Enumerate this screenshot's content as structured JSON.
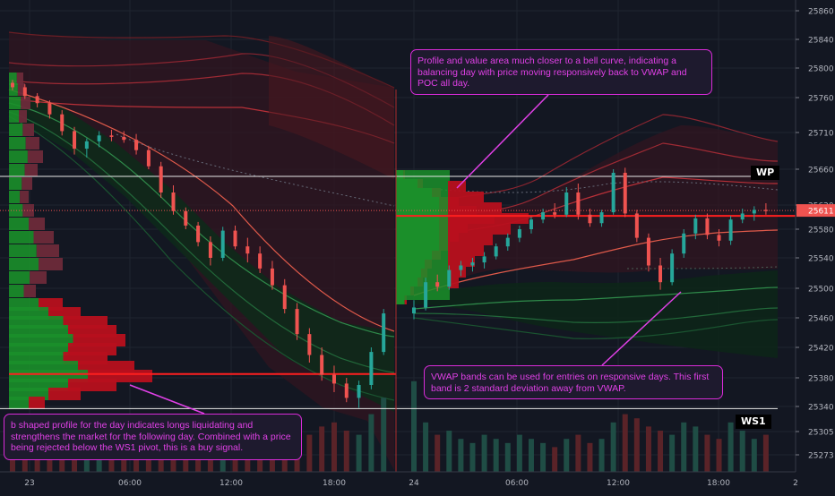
{
  "chart_data": {
    "type": "candlestick",
    "instrument_price": "25611",
    "y_axis": {
      "ticks": [
        "25860",
        "25840",
        "25800",
        "25760",
        "25710",
        "25660",
        "25620",
        "25580",
        "25540",
        "25500",
        "25460",
        "25420",
        "25380",
        "25340",
        "25305",
        "25273"
      ]
    },
    "x_axis": {
      "ticks": [
        "23",
        "06:00",
        "12:00",
        "18:00",
        "24",
        "06:00",
        "12:00",
        "18:00",
        "2"
      ]
    },
    "pivots": [
      {
        "name": "WP",
        "price": 25652
      },
      {
        "name": "WS1",
        "price": 25337
      }
    ],
    "pocs": [
      {
        "session": 1,
        "price": 25385
      },
      {
        "session": 2,
        "price": 25602
      }
    ],
    "candles": [
      [
        25780,
        25784,
        25770,
        25774
      ],
      [
        25774,
        25778,
        25758,
        25762
      ],
      [
        25762,
        25766,
        25746,
        25752
      ],
      [
        25752,
        25756,
        25730,
        25736
      ],
      [
        25736,
        25742,
        25706,
        25712
      ],
      [
        25712,
        25718,
        25680,
        25688
      ],
      [
        25688,
        25702,
        25676,
        25698
      ],
      [
        25698,
        25712,
        25690,
        25706
      ],
      [
        25706,
        25714,
        25698,
        25704
      ],
      [
        25704,
        25712,
        25696,
        25700
      ],
      [
        25700,
        25708,
        25680,
        25686
      ],
      [
        25686,
        25692,
        25660,
        25664
      ],
      [
        25664,
        25670,
        25628,
        25634
      ],
      [
        25634,
        25642,
        25604,
        25610
      ],
      [
        25610,
        25616,
        25580,
        25586
      ],
      [
        25586,
        25592,
        25556,
        25562
      ],
      [
        25562,
        25570,
        25530,
        25540
      ],
      [
        25540,
        25584,
        25536,
        25578
      ],
      [
        25578,
        25586,
        25552,
        25556
      ],
      [
        25556,
        25568,
        25534,
        25546
      ],
      [
        25546,
        25556,
        25520,
        25526
      ],
      [
        25526,
        25536,
        25498,
        25504
      ],
      [
        25504,
        25512,
        25466,
        25472
      ],
      [
        25472,
        25480,
        25430,
        25438
      ],
      [
        25438,
        25446,
        25400,
        25410
      ],
      [
        25410,
        25420,
        25376,
        25384
      ],
      [
        25384,
        25396,
        25360,
        25372
      ],
      [
        25372,
        25380,
        25346,
        25352
      ],
      [
        25352,
        25376,
        25338,
        25370
      ],
      [
        25370,
        25420,
        25364,
        25414
      ],
      [
        25414,
        25472,
        25410,
        25466
      ],
      [
        25466,
        25484,
        25458,
        25474
      ],
      [
        25474,
        25514,
        25470,
        25508
      ],
      [
        25508,
        25518,
        25496,
        25502
      ],
      [
        25502,
        25530,
        25498,
        25524
      ],
      [
        25524,
        25536,
        25516,
        25530
      ],
      [
        25530,
        25540,
        25522,
        25534
      ],
      [
        25534,
        25548,
        25526,
        25542
      ],
      [
        25542,
        25560,
        25538,
        25556
      ],
      [
        25556,
        25574,
        25550,
        25568
      ],
      [
        25568,
        25586,
        25562,
        25580
      ],
      [
        25580,
        25600,
        25574,
        25596
      ],
      [
        25596,
        25614,
        25590,
        25608
      ],
      [
        25608,
        25622,
        25598,
        25604
      ],
      [
        25604,
        25640,
        25600,
        25634
      ],
      [
        25634,
        25644,
        25596,
        25604
      ],
      [
        25604,
        25614,
        25584,
        25590
      ],
      [
        25590,
        25612,
        25584,
        25608
      ],
      [
        25608,
        25660,
        25604,
        25656
      ],
      [
        25656,
        25662,
        25600,
        25606
      ],
      [
        25606,
        25612,
        25562,
        25568
      ],
      [
        25568,
        25574,
        25522,
        25530
      ],
      [
        25530,
        25540,
        25498,
        25508
      ],
      [
        25508,
        25552,
        25504,
        25546
      ],
      [
        25546,
        25580,
        25540,
        25574
      ],
      [
        25574,
        25604,
        25566,
        25598
      ],
      [
        25598,
        25606,
        25566,
        25572
      ],
      [
        25572,
        25580,
        25556,
        25564
      ],
      [
        25564,
        25602,
        25558,
        25596
      ],
      [
        25596,
        25614,
        25590,
        25606
      ],
      [
        25606,
        25618,
        25594,
        25612
      ],
      [
        25612,
        25622,
        25604,
        25610
      ]
    ],
    "volume": [
      4,
      3,
      5,
      3,
      6,
      4,
      3,
      5,
      4,
      3,
      5,
      6,
      7,
      5,
      6,
      8,
      6,
      5,
      7,
      6,
      8,
      9,
      7,
      10,
      9,
      11,
      12,
      10,
      9,
      14,
      18,
      22,
      12,
      9,
      10,
      8,
      7,
      9,
      8,
      7,
      9,
      8,
      7,
      6,
      8,
      9,
      7,
      8,
      12,
      14,
      13,
      11,
      10,
      9,
      12,
      11,
      9,
      8,
      12,
      10,
      8,
      9
    ],
    "annotations": [
      "Profile and value area much closer to a bell curve, indicating a balancing day with price moving responsively back to VWAP and POC all day.",
      "VWAP bands can be used for entries on responsive days. This first band is 2 standard deviation away from VWAP.",
      "b shaped profile for the day indicates longs liquidating and strengthens the market for the following day. Combined with a price being rejected below the WS1 pivot, this is a buy signal."
    ]
  },
  "colors": {
    "up": "#26a69a",
    "down": "#ef5350",
    "profile_up": "#1b8f2a",
    "profile_down": "#b7101e",
    "annotation": "#e040e6",
    "poc": "#ff1f1f"
  }
}
